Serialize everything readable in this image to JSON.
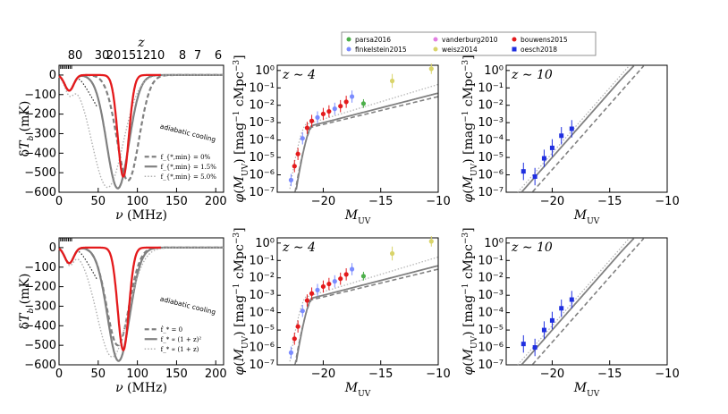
{
  "colors": {
    "red": "#e41a1c",
    "gray": "#808080",
    "lightgray": "#b0b0b0",
    "dark": "#222222",
    "parsa": "#4daf4a",
    "finkelstein": "#7b8cff",
    "vanderburg": "#e27ee2",
    "weisz": "#d9d46a",
    "bouwens": "#e41a1c",
    "oesch": "#1f2fe0"
  },
  "legend": {
    "parsa": "parsa2016",
    "finkelstein": "finkelstein2015",
    "vanderburg": "vanderburg2010",
    "weisz": "weisz2014",
    "bouwens": "bouwens2015",
    "oesch": "oesch2018"
  },
  "labels": {
    "z_top": "z",
    "nu_label": "ν (MHz)",
    "dtb_label": "δT_b (mK)",
    "phi_label": "φ(M_UV) [mag⁻¹ cMpc⁻³]",
    "muv_label": "M_UV",
    "adiabatic": "adiabatic cooling",
    "z4": "z ∼ 4",
    "z10": "z ∼ 10"
  },
  "chart_data": [
    {
      "id": "top_tb",
      "type": "line",
      "xlabel": "ν (MHz)",
      "ylabel": "δT_b (mK)",
      "xlim": [
        0,
        210
      ],
      "ylim": [
        -600,
        50
      ],
      "xticks": [
        "0",
        "50",
        "100",
        "150",
        "200"
      ],
      "yticks": [
        "0",
        "−100",
        "−200",
        "−300",
        "−400",
        "−500",
        "−600"
      ],
      "top_axis": {
        "label": "z",
        "ticks": [
          "80",
          "30",
          "20",
          "15",
          "12",
          "10",
          "8",
          "7",
          "6"
        ]
      },
      "legend": [
        "f_{*,min} = 0%",
        "f_{*,min} = 1.5%",
        "f_{*,min} = 5.0%"
      ],
      "series": [
        {
          "name": "f_{*,min} = 0%",
          "style": "dashed",
          "min_nu": 88,
          "min_tb": -540
        },
        {
          "name": "f_{*,min} = 1.5%",
          "style": "solid",
          "min_nu": 75,
          "min_tb": -580
        },
        {
          "name": "f_{*,min} = 5.0%",
          "style": "dotted",
          "min_nu": 62,
          "min_tb": -575
        },
        {
          "name": "red",
          "style": "solid",
          "min_nu": 82,
          "min_tb": -520
        }
      ]
    },
    {
      "id": "top_z4",
      "type": "scatter",
      "xlabel": "M_UV",
      "ylabel": "φ(M_UV)",
      "annotation": "z ∼ 4",
      "xlim": [
        -24,
        -10
      ],
      "ylim_log10": [
        -7,
        0.3
      ],
      "xticks": [
        "−20",
        "−15",
        "−10"
      ],
      "yticks": [
        "10⁰",
        "10⁻¹",
        "10⁻²",
        "10⁻³",
        "10⁻⁴",
        "10⁻⁵",
        "10⁻⁶",
        "10⁻⁷"
      ]
    },
    {
      "id": "top_z10",
      "type": "scatter",
      "xlabel": "M_UV",
      "ylabel": "φ(M_UV)",
      "annotation": "z ∼ 10",
      "xlim": [
        -24,
        -10
      ],
      "ylim_log10": [
        -7,
        0.3
      ],
      "xticks": [
        "−20",
        "−15",
        "−10"
      ],
      "yticks": [
        "10⁰",
        "10⁻¹",
        "10⁻²",
        "10⁻³",
        "10⁻⁴",
        "10⁻⁵",
        "10⁻⁶",
        "10⁻⁷"
      ],
      "data_points": [
        [
          -22.5,
          -5.8
        ],
        [
          -21.5,
          -6.1
        ],
        [
          -20.7,
          -5.05
        ],
        [
          -20.0,
          -4.45
        ],
        [
          -19.2,
          -3.75
        ],
        [
          -18.3,
          -3.35
        ]
      ]
    },
    {
      "id": "bottom_tb",
      "type": "line",
      "xlabel": "ν (MHz)",
      "ylabel": "δT_b (mK)",
      "xlim": [
        0,
        210
      ],
      "ylim": [
        -600,
        50
      ],
      "xticks": [
        "0",
        "50",
        "100",
        "150",
        "200"
      ],
      "yticks": [
        "0",
        "−100",
        "−200",
        "−300",
        "−400",
        "−500",
        "−600"
      ],
      "legend": [
        "ḟ_* = 0",
        "f_* ∝ (1 + z)²",
        "f_* ∝ (1 + z)"
      ],
      "series": [
        {
          "name": "ḟ_* = 0",
          "style": "dashed",
          "min_nu": 75,
          "min_tb": -500
        },
        {
          "name": "f_* ∝ (1 + z)²",
          "style": "solid",
          "min_nu": 76,
          "min_tb": -580
        },
        {
          "name": "f_* ∝ (1 + z)",
          "style": "dotted",
          "min_nu": 68,
          "min_tb": -560
        },
        {
          "name": "red",
          "style": "solid",
          "min_nu": 82,
          "min_tb": -525
        }
      ]
    },
    {
      "id": "bottom_z4",
      "type": "scatter",
      "xlabel": "M_UV",
      "ylabel": "φ(M_UV)",
      "annotation": "z ∼ 4",
      "xlim": [
        -24,
        -10
      ],
      "ylim_log10": [
        -7,
        0.3
      ],
      "xticks": [
        "−20",
        "−15",
        "−10"
      ],
      "yticks": [
        "10⁰",
        "10⁻¹",
        "10⁻²",
        "10⁻³",
        "10⁻⁴",
        "10⁻⁵",
        "10⁻⁶",
        "10⁻⁷"
      ]
    },
    {
      "id": "bottom_z10",
      "type": "scatter",
      "xlabel": "M_UV",
      "ylabel": "φ(M_UV)",
      "annotation": "z ∼ 10",
      "xlim": [
        -24,
        -10
      ],
      "ylim_log10": [
        -7,
        0.3
      ],
      "xticks": [
        "−20",
        "−15",
        "−10"
      ],
      "yticks": [
        "10⁰",
        "10⁻¹",
        "10⁻²",
        "10⁻³",
        "10⁻⁴",
        "10⁻⁵",
        "10⁻⁶",
        "10⁻⁷"
      ],
      "data_points": [
        [
          -22.5,
          -5.8
        ],
        [
          -21.5,
          -6.0
        ],
        [
          -20.7,
          -5.0
        ],
        [
          -20.0,
          -4.45
        ],
        [
          -19.2,
          -3.75
        ],
        [
          -18.3,
          -3.25
        ]
      ]
    }
  ]
}
